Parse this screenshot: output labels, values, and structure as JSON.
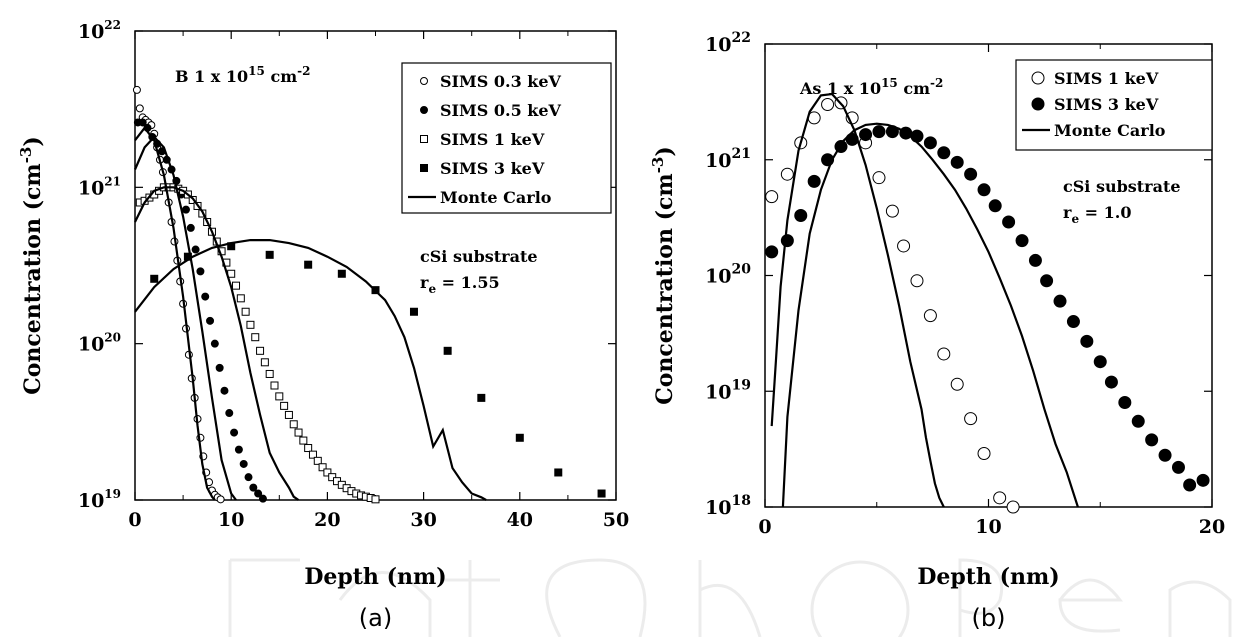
{
  "chart_data": [
    {
      "type": "scatter",
      "panel_label": "(a)",
      "xlabel": "Depth (nm)",
      "ylabel": "Concentration (cm-3)",
      "yscale": "log",
      "xlim": [
        0,
        50
      ],
      "ylim": [
        1e+19,
        1e+22
      ],
      "x_ticks": [
        0,
        10,
        20,
        30,
        40,
        50
      ],
      "y_ticks": [
        1e+19,
        1e+20,
        1e+21,
        1e+22
      ],
      "legend_position": "top-right",
      "annotation": {
        "dose_prefix": "B 1 x 10",
        "dose_exp": "15",
        "dose_unit": " cm",
        "dose_unit_exp": "-2"
      },
      "annotation2": {
        "line1": "cSi substrate",
        "line2_prefix": "r",
        "line2_sub": "e",
        "line2_suffix": " = 1.55"
      },
      "series": [
        {
          "name": "SIMS 0.3 keV",
          "marker": "open-circle",
          "x": [
            0.2,
            0.5,
            0.8,
            1.1,
            1.4,
            1.7,
            2.0,
            2.3,
            2.6,
            2.9,
            3.2,
            3.5,
            3.8,
            4.1,
            4.4,
            4.7,
            5.0,
            5.3,
            5.6,
            5.9,
            6.2,
            6.5,
            6.8,
            7.1,
            7.4,
            7.7,
            8.0,
            8.3,
            8.6,
            8.9
          ],
          "y": [
            4.2e+21,
            3.2e+21,
            2.8e+21,
            2.7e+21,
            2.6e+21,
            2.5e+21,
            2.2e+21,
            1.8e+21,
            1.5e+21,
            1.25e+21,
            1e+21,
            8e+20,
            6e+20,
            4.5e+20,
            3.4e+20,
            2.5e+20,
            1.8e+20,
            1.25e+20,
            8.5e+19,
            6e+19,
            4.5e+19,
            3.3e+19,
            2.5e+19,
            1.9e+19,
            1.5e+19,
            1.3e+19,
            1.15e+19,
            1.08e+19,
            1.04e+19,
            1.01e+19
          ]
        },
        {
          "name": "SIMS 0.5 keV",
          "marker": "filled-circle",
          "x": [
            0.3,
            0.8,
            1.3,
            1.8,
            2.3,
            2.8,
            3.3,
            3.8,
            4.3,
            4.8,
            5.3,
            5.8,
            6.3,
            6.8,
            7.3,
            7.8,
            8.3,
            8.8,
            9.3,
            9.8,
            10.3,
            10.8,
            11.3,
            11.8,
            12.3,
            12.8,
            13.3
          ],
          "y": [
            2.6e+21,
            2.6e+21,
            2.4e+21,
            2.1e+21,
            1.9e+21,
            1.7e+21,
            1.5e+21,
            1.3e+21,
            1.1e+21,
            9e+20,
            7.2e+20,
            5.5e+20,
            4e+20,
            2.9e+20,
            2e+20,
            1.4e+20,
            1e+20,
            7e+19,
            5e+19,
            3.6e+19,
            2.7e+19,
            2.1e+19,
            1.7e+19,
            1.4e+19,
            1.2e+19,
            1.1e+19,
            1.02e+19
          ]
        },
        {
          "name": "SIMS 1 keV",
          "marker": "open-square",
          "x": [
            0.5,
            1.0,
            1.5,
            2.0,
            2.5,
            3.0,
            3.5,
            4.0,
            4.5,
            5.0,
            5.5,
            6.0,
            6.5,
            7.0,
            7.5,
            8.0,
            8.5,
            9.0,
            9.5,
            10.0,
            10.5,
            11.0,
            11.5,
            12.0,
            12.5,
            13.0,
            13.5,
            14.0,
            14.5,
            15.0,
            15.5,
            16.0,
            16.5,
            17.0,
            17.5,
            18.0,
            18.5,
            19.0,
            19.5,
            20.0,
            20.5,
            21.0,
            21.5,
            22.0,
            22.5,
            23.0,
            23.5,
            24.0,
            24.5,
            25.0
          ],
          "y": [
            8e+20,
            8.2e+20,
            8.6e+20,
            9e+20,
            9.5e+20,
            1e+21,
            1e+21,
            1e+21,
            9.8e+20,
            9.5e+20,
            9e+20,
            8.3e+20,
            7.6e+20,
            6.8e+20,
            6e+20,
            5.2e+20,
            4.5e+20,
            3.9e+20,
            3.3e+20,
            2.8e+20,
            2.35e+20,
            1.95e+20,
            1.6e+20,
            1.32e+20,
            1.1e+20,
            9e+19,
            7.6e+19,
            6.4e+19,
            5.4e+19,
            4.6e+19,
            4e+19,
            3.5e+19,
            3.05e+19,
            2.7e+19,
            2.4e+19,
            2.15e+19,
            1.95e+19,
            1.78e+19,
            1.62e+19,
            1.5e+19,
            1.4e+19,
            1.32e+19,
            1.25e+19,
            1.19e+19,
            1.14e+19,
            1.1e+19,
            1.07e+19,
            1.05e+19,
            1.03e+19,
            1.01e+19
          ]
        },
        {
          "name": "SIMS 3 keV",
          "marker": "filled-square",
          "x": [
            2.0,
            5.5,
            10.0,
            14.0,
            18.0,
            21.5,
            25.0,
            29.0,
            32.5,
            36.0,
            40.0,
            44.0,
            48.5
          ],
          "y": [
            2.6e+20,
            3.6e+20,
            4.2e+20,
            3.7e+20,
            3.2e+20,
            2.8e+20,
            2.2e+20,
            1.6e+20,
            9e+19,
            4.5e+19,
            2.5e+19,
            1.5e+19,
            1.1e+19
          ]
        },
        {
          "name": "Monte Carlo",
          "marker": "line",
          "curves": [
            {
              "x": [
                0,
                1,
                2,
                3,
                4,
                5,
                6,
                6.5,
                7,
                7.5,
                8,
                8.3
              ],
              "y": [
                2e+21,
                2.4e+21,
                2e+21,
                1.2e+21,
                5.5e+20,
                2e+20,
                6e+19,
                3e+19,
                1.7e+19,
                1.2e+19,
                1.05e+19,
                1e+19
              ]
            },
            {
              "x": [
                0,
                1,
                2,
                3,
                4,
                5,
                6,
                7,
                8,
                9,
                10,
                10.5
              ],
              "y": [
                1.3e+21,
                1.8e+21,
                2.1e+21,
                1.8e+21,
                1.2e+21,
                6.5e+20,
                3e+20,
                1.2e+20,
                4.5e+19,
                1.8e+19,
                1.1e+19,
                1e+19
              ]
            },
            {
              "x": [
                0,
                1,
                2,
                3,
                4,
                5,
                6,
                7,
                8,
                9,
                10,
                11,
                12,
                13,
                14,
                15,
                16,
                16.5,
                17
              ],
              "y": [
                6e+20,
                8e+20,
                9.5e+20,
                1e+21,
                1e+21,
                9.5e+20,
                8.5e+20,
                7e+20,
                5.2e+20,
                3.6e+20,
                2.3e+20,
                1.3e+20,
                6.5e+19,
                3.5e+19,
                2e+19,
                1.5e+19,
                1.2e+19,
                1.05e+19,
                1e+19
              ]
            },
            {
              "x": [
                0,
                2,
                4,
                6,
                8,
                10,
                12,
                14,
                16,
                18,
                20,
                22,
                24,
                26,
                27,
                28,
                29,
                30,
                31,
                32,
                33,
                34,
                35,
                36,
                36.5
              ],
              "y": [
                1.6e+20,
                2.3e+20,
                3e+20,
                3.6e+20,
                4.1e+20,
                4.4e+20,
                4.6e+20,
                4.6e+20,
                4.4e+20,
                4.1e+20,
                3.6e+20,
                3.1e+20,
                2.5e+20,
                1.9e+20,
                1.5e+20,
                1.1e+20,
                7e+19,
                4e+19,
                2.2e+19,
                2.8e+19,
                1.6e+19,
                1.3e+19,
                1.1e+19,
                1.04e+19,
                1e+19
              ]
            }
          ]
        }
      ]
    },
    {
      "type": "scatter",
      "panel_label": "(b)",
      "xlabel": "Depth (nm)",
      "ylabel": "Concentration (cm-3)",
      "yscale": "log",
      "xlim": [
        0,
        20
      ],
      "ylim": [
        1e+18,
        1e+22
      ],
      "x_ticks": [
        0,
        10,
        20
      ],
      "y_ticks": [
        1e+18,
        1e+19,
        1e+20,
        1e+21,
        1e+22
      ],
      "legend_position": "top-right",
      "annotation": {
        "dose_prefix": "As 1 x 10",
        "dose_exp": "15",
        "dose_unit": " cm",
        "dose_unit_exp": "-2"
      },
      "annotation2": {
        "line1": "cSi substrate",
        "line2_prefix": "r",
        "line2_sub": "e",
        "line2_suffix": " = 1.0"
      },
      "series": [
        {
          "name": "SIMS 1 keV",
          "marker": "open-circle",
          "x": [
            0.3,
            1.0,
            1.6,
            2.2,
            2.8,
            3.4,
            3.9,
            4.5,
            5.1,
            5.7,
            6.2,
            6.8,
            7.4,
            8.0,
            8.6,
            9.2,
            9.8,
            10.5,
            11.1
          ],
          "y": [
            4.8e+20,
            7.5e+20,
            1.4e+21,
            2.3e+21,
            3e+21,
            3.1e+21,
            2.3e+21,
            1.4e+21,
            7e+20,
            3.6e+20,
            1.8e+20,
            9e+19,
            4.5e+19,
            2.1e+19,
            1.15e+19,
            5.8e+18,
            2.9e+18,
            1.2e+18,
            1e+18
          ]
        },
        {
          "name": "SIMS 3 keV",
          "marker": "filled-circle",
          "x": [
            0.3,
            1.0,
            1.6,
            2.2,
            2.8,
            3.4,
            3.9,
            4.5,
            5.1,
            5.7,
            6.3,
            6.8,
            7.4,
            8.0,
            8.6,
            9.2,
            9.8,
            10.3,
            10.9,
            11.5,
            12.1,
            12.6,
            13.2,
            13.8,
            14.4,
            15.0,
            15.5,
            16.1,
            16.7,
            17.3,
            17.9,
            18.5,
            19.0,
            19.6
          ],
          "y": [
            1.6e+20,
            2e+20,
            3.3e+20,
            6.5e+20,
            1e+21,
            1.3e+21,
            1.5e+21,
            1.65e+21,
            1.75e+21,
            1.75e+21,
            1.7e+21,
            1.6e+21,
            1.4e+21,
            1.15e+21,
            9.5e+20,
            7.5e+20,
            5.5e+20,
            4e+20,
            2.9e+20,
            2e+20,
            1.35e+20,
            9e+19,
            6e+19,
            4e+19,
            2.7e+19,
            1.8e+19,
            1.2e+19,
            8e+18,
            5.5e+18,
            3.8e+18,
            2.8e+18,
            2.2e+18,
            1.55e+18,
            1.7e+18
          ]
        },
        {
          "name": "Monte Carlo",
          "marker": "line",
          "curves": [
            {
              "x": [
                0.3,
                0.5,
                0.7,
                1.0,
                1.5,
                2.0,
                2.5,
                3.0,
                3.5,
                4.0,
                4.5,
                5.0,
                5.5,
                6.0,
                6.5,
                7.0,
                7.2,
                7.4,
                7.6,
                7.8,
                8.0
              ],
              "y": [
                5e+18,
                2e+19,
                8e+19,
                3e+20,
                1.2e+21,
                2.6e+21,
                3.6e+21,
                3.7e+21,
                2.9e+21,
                1.8e+21,
                9e+20,
                3.8e+20,
                1.5e+20,
                5.5e+19,
                1.8e+19,
                7e+18,
                4e+18,
                2.5e+18,
                1.6e+18,
                1.2e+18,
                1e+18
              ]
            },
            {
              "x": [
                0.8,
                1.0,
                1.5,
                2.0,
                2.5,
                3.0,
                3.5,
                4.0,
                4.5,
                5.0,
                5.5,
                6.0,
                6.5,
                7.0,
                7.5,
                8.0,
                8.5,
                9.0,
                9.5,
                10.0,
                10.5,
                11.0,
                11.5,
                12.0,
                12.5,
                13.0,
                13.5,
                14.0
              ],
              "y": [
                1e+18,
                6e+18,
                5e+19,
                2.3e+20,
                5.5e+20,
                1e+21,
                1.45e+21,
                1.8e+21,
                2e+21,
                2.05e+21,
                2e+21,
                1.85e+21,
                1.6e+21,
                1.3e+21,
                1e+21,
                7.5e+20,
                5.5e+20,
                3.8e+20,
                2.5e+20,
                1.6e+20,
                9.5e+19,
                5.5e+19,
                3e+19,
                1.5e+19,
                7e+18,
                3.5e+18,
                2e+18,
                1e+18
              ]
            }
          ]
        }
      ]
    }
  ]
}
